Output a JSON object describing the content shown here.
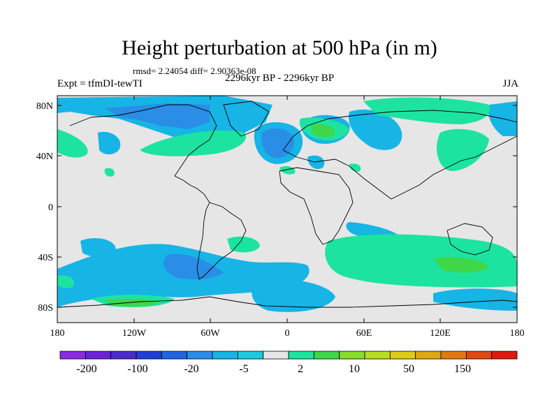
{
  "title": "Height perturbation at 500 hPa (in m)",
  "stats": "rmsd= 2.24054 diff= 2.90363e-08",
  "left_label": "Expt = tfmDI-tewTI",
  "center_label": "2296kyr BP - 2296kyr BP",
  "right_label": "JJA",
  "lat_ticks": [
    "80N",
    "40N",
    "0",
    "40S",
    "80S"
  ],
  "lon_ticks": [
    "180",
    "120W",
    "60W",
    "0",
    "60E",
    "120E",
    "180"
  ],
  "colorbar": {
    "colors": [
      "#8a2be2",
      "#6a24d8",
      "#4b2ccc",
      "#1f3fd6",
      "#1f66e0",
      "#2a8ee6",
      "#17b4e6",
      "#1ccbe0",
      "#e6e6e6",
      "#1de3a0",
      "#3fd64a",
      "#88dd2a",
      "#b8dd1e",
      "#dccc12",
      "#e0a810",
      "#e07a10",
      "#e04a10",
      "#e01a10"
    ],
    "labels": [
      "-200",
      "-100",
      "-20",
      "-5",
      "2",
      "10",
      "50",
      "150"
    ]
  },
  "palette": {
    "neutral": "#e6e6e6",
    "light_blue": "#17b4e6",
    "mid_blue": "#2a8ee6",
    "green_light": "#1de3a0",
    "green": "#3fd64a"
  }
}
